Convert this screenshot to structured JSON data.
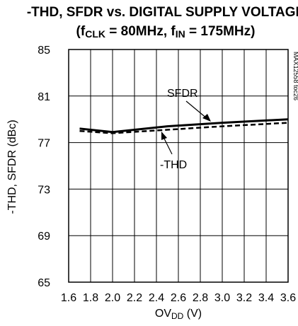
{
  "chart_data": {
    "type": "line",
    "title_line1": "-THD, SFDR vs. DIGITAL SUPPLY VOLTAGE",
    "title_line2": {
      "open": "(f",
      "sub1": "CLK",
      "mid": " = 80MHz, f",
      "sub2": "IN",
      "close": " = 175MHz)"
    },
    "xlabel": {
      "main": "OV",
      "sub": "DD",
      "unit": " (V)"
    },
    "ylabel": "-THD, SFDR (dBc)",
    "xlim": [
      1.6,
      3.6
    ],
    "ylim": [
      65,
      85
    ],
    "xticks": [
      "1.6",
      "1.8",
      "2.0",
      "2.2",
      "2.4",
      "2.6",
      "2.8",
      "3.0",
      "3.2",
      "3.4",
      "3.6"
    ],
    "yticks": [
      "65",
      "69",
      "73",
      "77",
      "81",
      "85"
    ],
    "grid": true,
    "figure_code": "MAX12558 toc26",
    "series": [
      {
        "name": "SFDR",
        "style": "solid",
        "x": [
          1.7,
          2.0,
          2.5,
          3.0,
          3.6
        ],
        "y": [
          78.2,
          77.9,
          78.4,
          78.7,
          79.0
        ]
      },
      {
        "name": "-THD",
        "style": "dashed",
        "x": [
          1.7,
          2.0,
          2.5,
          3.0,
          3.6
        ],
        "y": [
          78.0,
          77.8,
          78.1,
          78.4,
          78.7
        ]
      }
    ]
  }
}
